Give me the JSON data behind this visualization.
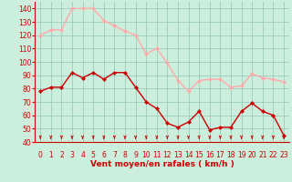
{
  "hours": [
    0,
    1,
    2,
    3,
    4,
    5,
    6,
    7,
    8,
    9,
    10,
    11,
    12,
    13,
    14,
    15,
    16,
    17,
    18,
    19,
    20,
    21,
    22,
    23
  ],
  "wind_avg": [
    78,
    81,
    81,
    92,
    88,
    92,
    87,
    92,
    92,
    81,
    70,
    65,
    54,
    51,
    55,
    63,
    49,
    51,
    51,
    63,
    69,
    63,
    60,
    45
  ],
  "wind_gust": [
    120,
    124,
    124,
    140,
    140,
    140,
    131,
    127,
    123,
    120,
    106,
    110,
    99,
    86,
    78,
    86,
    87,
    87,
    81,
    82,
    91,
    88,
    87,
    85
  ],
  "avg_color": "#cc0000",
  "gust_color": "#ffaaaa",
  "bg_color": "#cceedd",
  "grid_color": "#99ccbb",
  "xlabel": "Vent moyen/en rafales ( km/h )",
  "xlabel_color": "#cc0000",
  "ylim": [
    40,
    145
  ],
  "yticks": [
    40,
    50,
    60,
    70,
    80,
    90,
    100,
    110,
    120,
    130,
    140
  ],
  "tick_color": "#cc0000",
  "arrow_color": "#cc0000",
  "tick_fontsize": 5.5,
  "xlabel_fontsize": 6.5
}
